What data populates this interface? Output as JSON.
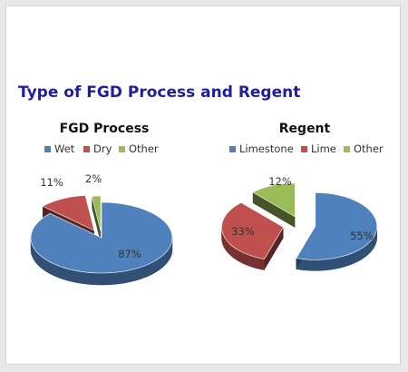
{
  "page": {
    "title": "Type of FGD Process and Regent"
  },
  "chart_data": [
    {
      "type": "pie",
      "title": "FGD Process",
      "legend_position": "top",
      "categories": [
        "Wet",
        "Dry",
        "Other"
      ],
      "values": [
        87,
        11,
        2
      ],
      "labels": [
        "87%",
        "11%",
        "2%"
      ],
      "colors": [
        "#4f81bd",
        "#c0504d",
        "#9bbb59"
      ],
      "exploded": [
        false,
        true,
        true
      ],
      "style": "3d"
    },
    {
      "type": "pie",
      "title": "Regent",
      "legend_position": "top",
      "categories": [
        "Limestone",
        "Lime",
        "Other"
      ],
      "values": [
        55,
        33,
        12
      ],
      "labels": [
        "55%",
        "33%",
        "12%"
      ],
      "colors": [
        "#4f81bd",
        "#c0504d",
        "#9bbb59"
      ],
      "exploded": [
        true,
        true,
        true
      ],
      "style": "3d"
    }
  ]
}
